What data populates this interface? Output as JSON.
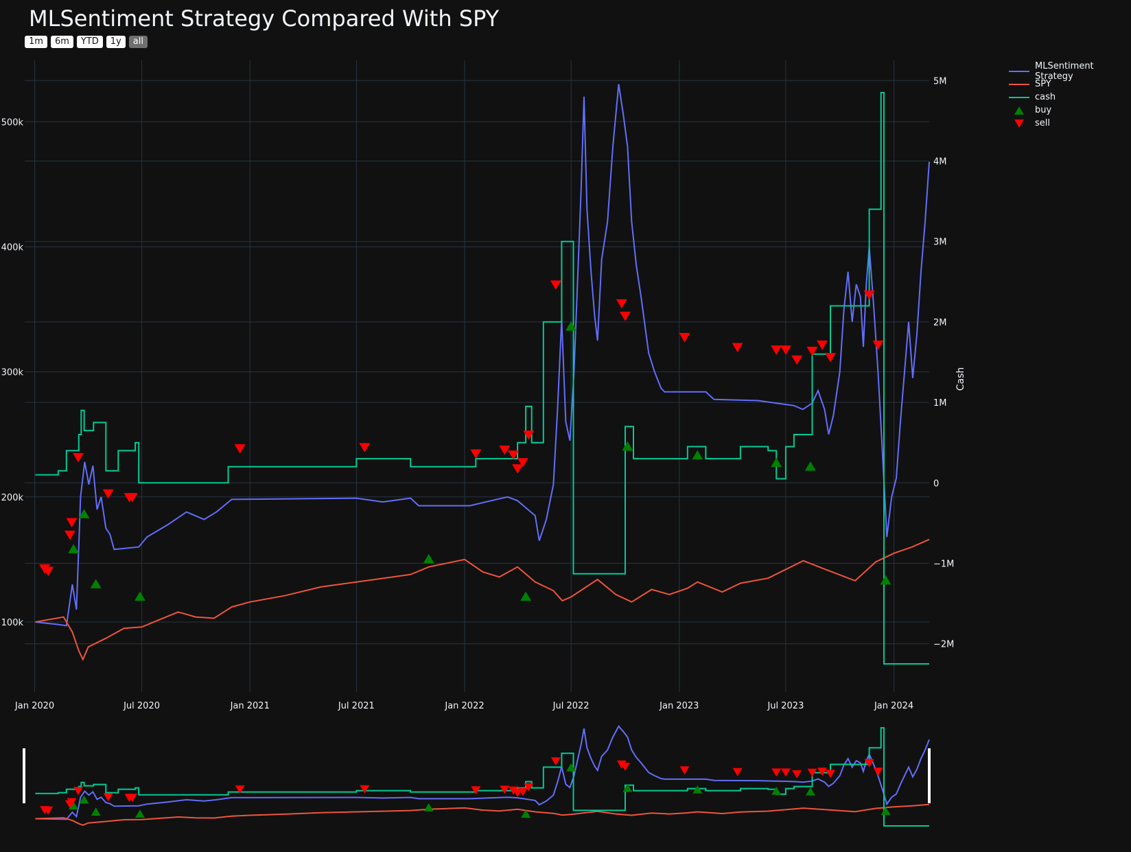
{
  "title": "MLSentiment Strategy Compared With SPY",
  "range_selector": {
    "buttons": [
      "1m",
      "6m",
      "YTD",
      "1y",
      "all"
    ],
    "active": "all"
  },
  "legend": {
    "placement": "top-right",
    "items": [
      {
        "label": "MLSentiment Strategy",
        "kind": "line",
        "color": "#636efa"
      },
      {
        "label": "SPY",
        "kind": "line",
        "color": "#ef553b"
      },
      {
        "label": "cash",
        "kind": "line",
        "color": "#00cc96"
      },
      {
        "label": "buy",
        "kind": "triangle-up",
        "color": "#008000"
      },
      {
        "label": "sell",
        "kind": "triangle-down",
        "color": "#ff0000"
      }
    ]
  },
  "colors": {
    "background": "#111111",
    "grid": "#283442",
    "strategy": "#636efa",
    "spy": "#ef553b",
    "cash": "#00cc96",
    "buy": "#008000",
    "sell": "#ff0000"
  },
  "chart_data": {
    "type": "line",
    "title": "MLSentiment Strategy Compared With SPY",
    "grid": true,
    "x_ticks": [
      "Jan 2020",
      "Jul 2020",
      "Jan 2021",
      "Jul 2021",
      "Jan 2022",
      "Jul 2022",
      "Jan 2023",
      "Jul 2023",
      "Jan 2024"
    ],
    "x_tick_values": [
      "2020-01-01",
      "2020-07-01",
      "2021-01-01",
      "2021-07-01",
      "2022-01-01",
      "2022-07-01",
      "2023-01-01",
      "2023-07-01",
      "2024-01-01"
    ],
    "xlim": [
      "2019-12-15",
      "2024-03-01"
    ],
    "y_left": {
      "ticks": [
        "100k",
        "200k",
        "300k",
        "400k",
        "500k"
      ],
      "tick_values": [
        100000,
        200000,
        300000,
        400000,
        500000
      ],
      "range": [
        44000,
        549000
      ]
    },
    "y_right": {
      "label": "Cash",
      "ticks": [
        "−2M",
        "−1M",
        "0",
        "1M",
        "2M",
        "3M",
        "4M",
        "5M"
      ],
      "tick_values": [
        -2000000,
        -1000000,
        0,
        1000000,
        2000000,
        3000000,
        4000000,
        5000000
      ],
      "range": [
        -2600000,
        5250000
      ]
    },
    "series": [
      {
        "name": "MLSentiment Strategy",
        "axis": "left",
        "color": "#636efa",
        "points": [
          [
            "2020-01-02",
            100000
          ],
          [
            "2020-02-10",
            98000
          ],
          [
            "2020-02-24",
            97000
          ],
          [
            "2020-03-05",
            130000
          ],
          [
            "2020-03-12",
            110000
          ],
          [
            "2020-03-19",
            200000
          ],
          [
            "2020-03-26",
            228000
          ],
          [
            "2020-04-02",
            210000
          ],
          [
            "2020-04-09",
            225000
          ],
          [
            "2020-04-16",
            190000
          ],
          [
            "2020-04-23",
            200000
          ],
          [
            "2020-05-01",
            175000
          ],
          [
            "2020-05-08",
            170000
          ],
          [
            "2020-05-15",
            158000
          ],
          [
            "2020-06-26",
            160000
          ],
          [
            "2020-07-10",
            168000
          ],
          [
            "2020-08-15",
            178000
          ],
          [
            "2020-09-15",
            188000
          ],
          [
            "2020-10-15",
            182000
          ],
          [
            "2020-11-05",
            188000
          ],
          [
            "2020-12-01",
            198000
          ],
          [
            "2021-07-01",
            199000
          ],
          [
            "2021-08-15",
            196000
          ],
          [
            "2021-10-01",
            199000
          ],
          [
            "2021-10-15",
            193000
          ],
          [
            "2022-01-10",
            193000
          ],
          [
            "2022-02-15",
            197000
          ],
          [
            "2022-03-15",
            200000
          ],
          [
            "2022-04-01",
            197000
          ],
          [
            "2022-05-01",
            185000
          ],
          [
            "2022-05-08",
            165000
          ],
          [
            "2022-05-20",
            182000
          ],
          [
            "2022-06-01",
            210000
          ],
          [
            "2022-06-08",
            270000
          ],
          [
            "2022-06-15",
            342000
          ],
          [
            "2022-06-22",
            260000
          ],
          [
            "2022-06-29",
            245000
          ],
          [
            "2022-07-06",
            300000
          ],
          [
            "2022-07-11",
            360000
          ],
          [
            "2022-07-18",
            445000
          ],
          [
            "2022-07-23",
            520000
          ],
          [
            "2022-07-28",
            430000
          ],
          [
            "2022-08-04",
            380000
          ],
          [
            "2022-08-10",
            345000
          ],
          [
            "2022-08-15",
            325000
          ],
          [
            "2022-08-22",
            390000
          ],
          [
            "2022-09-01",
            420000
          ],
          [
            "2022-09-10",
            480000
          ],
          [
            "2022-09-20",
            530000
          ],
          [
            "2022-09-28",
            505000
          ],
          [
            "2022-10-05",
            480000
          ],
          [
            "2022-10-12",
            420000
          ],
          [
            "2022-10-20",
            385000
          ],
          [
            "2022-10-28",
            360000
          ],
          [
            "2022-11-10",
            315000
          ],
          [
            "2022-11-20",
            300000
          ],
          [
            "2022-12-01",
            287000
          ],
          [
            "2022-12-07",
            284000
          ],
          [
            "2023-02-15",
            284000
          ],
          [
            "2023-03-01",
            278000
          ],
          [
            "2023-05-15",
            277000
          ],
          [
            "2023-06-15",
            275000
          ],
          [
            "2023-07-15",
            273000
          ],
          [
            "2023-07-30",
            270000
          ],
          [
            "2023-08-15",
            275000
          ],
          [
            "2023-08-25",
            285000
          ],
          [
            "2023-09-05",
            270000
          ],
          [
            "2023-09-12",
            250000
          ],
          [
            "2023-09-20",
            265000
          ],
          [
            "2023-10-01",
            300000
          ],
          [
            "2023-10-08",
            350000
          ],
          [
            "2023-10-15",
            380000
          ],
          [
            "2023-10-22",
            340000
          ],
          [
            "2023-10-29",
            370000
          ],
          [
            "2023-11-05",
            360000
          ],
          [
            "2023-11-10",
            320000
          ],
          [
            "2023-11-15",
            370000
          ],
          [
            "2023-11-20",
            400000
          ],
          [
            "2023-11-28",
            350000
          ],
          [
            "2023-12-05",
            300000
          ],
          [
            "2023-12-12",
            240000
          ],
          [
            "2023-12-20",
            168000
          ],
          [
            "2023-12-28",
            200000
          ],
          [
            "2024-01-05",
            215000
          ],
          [
            "2024-01-12",
            260000
          ],
          [
            "2024-01-19",
            300000
          ],
          [
            "2024-01-26",
            340000
          ],
          [
            "2024-02-02",
            295000
          ],
          [
            "2024-02-09",
            330000
          ],
          [
            "2024-02-16",
            380000
          ],
          [
            "2024-02-23",
            420000
          ],
          [
            "2024-03-01",
            468000
          ]
        ]
      },
      {
        "name": "SPY",
        "axis": "left",
        "color": "#ef553b",
        "points": [
          [
            "2020-01-02",
            100000
          ],
          [
            "2020-02-19",
            104000
          ],
          [
            "2020-03-05",
            92000
          ],
          [
            "2020-03-16",
            77000
          ],
          [
            "2020-03-23",
            70000
          ],
          [
            "2020-04-01",
            80000
          ],
          [
            "2020-05-01",
            87000
          ],
          [
            "2020-06-01",
            95000
          ],
          [
            "2020-07-01",
            96000
          ],
          [
            "2020-08-01",
            102000
          ],
          [
            "2020-09-01",
            108000
          ],
          [
            "2020-10-01",
            104000
          ],
          [
            "2020-11-01",
            103000
          ],
          [
            "2020-12-01",
            112000
          ],
          [
            "2021-01-01",
            116000
          ],
          [
            "2021-03-01",
            121000
          ],
          [
            "2021-05-01",
            128000
          ],
          [
            "2021-07-01",
            132000
          ],
          [
            "2021-09-01",
            136000
          ],
          [
            "2021-10-01",
            138000
          ],
          [
            "2021-11-01",
            144000
          ],
          [
            "2022-01-01",
            150000
          ],
          [
            "2022-02-01",
            140000
          ],
          [
            "2022-03-01",
            136000
          ],
          [
            "2022-04-01",
            144000
          ],
          [
            "2022-05-01",
            132000
          ],
          [
            "2022-06-01",
            125000
          ],
          [
            "2022-06-16",
            117000
          ],
          [
            "2022-07-01",
            120000
          ],
          [
            "2022-08-15",
            134000
          ],
          [
            "2022-09-15",
            122000
          ],
          [
            "2022-10-12",
            116000
          ],
          [
            "2022-11-15",
            126000
          ],
          [
            "2022-12-15",
            122000
          ],
          [
            "2023-01-15",
            127000
          ],
          [
            "2023-02-01",
            132000
          ],
          [
            "2023-03-15",
            124000
          ],
          [
            "2023-04-15",
            131000
          ],
          [
            "2023-06-01",
            135000
          ],
          [
            "2023-07-31",
            149000
          ],
          [
            "2023-09-01",
            143000
          ],
          [
            "2023-10-27",
            133000
          ],
          [
            "2023-12-01",
            148000
          ],
          [
            "2024-01-01",
            155000
          ],
          [
            "2024-02-01",
            160000
          ],
          [
            "2024-03-01",
            166000
          ]
        ]
      },
      {
        "name": "cash",
        "axis": "right",
        "color": "#00cc96",
        "shape": "hv",
        "points": [
          [
            "2020-01-02",
            100000
          ],
          [
            "2020-02-10",
            150000
          ],
          [
            "2020-02-24",
            400000
          ],
          [
            "2020-03-16",
            600000
          ],
          [
            "2020-03-20",
            900000
          ],
          [
            "2020-03-25",
            650000
          ],
          [
            "2020-04-10",
            750000
          ],
          [
            "2020-05-01",
            150000
          ],
          [
            "2020-05-20",
            150000
          ],
          [
            "2020-05-22",
            400000
          ],
          [
            "2020-06-20",
            500000
          ],
          [
            "2020-06-26",
            0
          ],
          [
            "2020-11-25",
            200000
          ],
          [
            "2021-07-01",
            300000
          ],
          [
            "2021-10-01",
            200000
          ],
          [
            "2022-01-20",
            300000
          ],
          [
            "2022-04-01",
            500000
          ],
          [
            "2022-04-15",
            950000
          ],
          [
            "2022-04-25",
            500000
          ],
          [
            "2022-05-15",
            2000000
          ],
          [
            "2022-06-15",
            3000000
          ],
          [
            "2022-07-01",
            3000000
          ],
          [
            "2022-07-05",
            -1130000
          ],
          [
            "2022-09-30",
            -1130000
          ],
          [
            "2022-10-01",
            700000
          ],
          [
            "2022-10-15",
            300000
          ],
          [
            "2023-01-15",
            450000
          ],
          [
            "2023-02-15",
            300000
          ],
          [
            "2023-04-15",
            450000
          ],
          [
            "2023-06-01",
            400000
          ],
          [
            "2023-06-15",
            50000
          ],
          [
            "2023-07-01",
            450000
          ],
          [
            "2023-07-15",
            600000
          ],
          [
            "2023-08-15",
            1600000
          ],
          [
            "2023-09-15",
            2200000
          ],
          [
            "2023-10-15",
            2200000
          ],
          [
            "2023-11-01",
            2200000
          ],
          [
            "2023-11-10",
            2200000
          ],
          [
            "2023-11-20",
            3400000
          ],
          [
            "2023-12-10",
            4850000
          ],
          [
            "2023-12-15",
            -2250000
          ],
          [
            "2024-03-01",
            -2250000
          ]
        ]
      }
    ],
    "markers": {
      "buy": [
        [
          "2020-03-07",
          158000
        ],
        [
          "2020-03-25",
          186000
        ],
        [
          "2020-04-14",
          130000
        ],
        [
          "2020-06-28",
          120000
        ],
        [
          "2021-11-01",
          150000
        ],
        [
          "2022-04-15",
          120000
        ],
        [
          "2022-07-01",
          336000
        ],
        [
          "2022-10-05",
          240000
        ],
        [
          "2023-02-01",
          233000
        ],
        [
          "2023-06-15",
          227000
        ],
        [
          "2023-08-12",
          224000
        ],
        [
          "2023-12-18",
          133000
        ]
      ],
      "sell": [
        [
          "2020-01-18",
          143000
        ],
        [
          "2020-01-24",
          141000
        ],
        [
          "2020-03-01",
          170000
        ],
        [
          "2020-03-04",
          180000
        ],
        [
          "2020-03-15",
          232000
        ],
        [
          "2020-05-05",
          203000
        ],
        [
          "2020-06-10",
          200000
        ],
        [
          "2020-06-15",
          200000
        ],
        [
          "2020-12-15",
          239000
        ],
        [
          "2021-07-15",
          240000
        ],
        [
          "2022-01-20",
          235000
        ],
        [
          "2022-03-10",
          238000
        ],
        [
          "2022-03-25",
          234000
        ],
        [
          "2022-04-01",
          223000
        ],
        [
          "2022-04-10",
          228000
        ],
        [
          "2022-04-20",
          250000
        ],
        [
          "2022-06-05",
          370000
        ],
        [
          "2022-09-25",
          355000
        ],
        [
          "2022-10-01",
          345000
        ],
        [
          "2023-01-10",
          328000
        ],
        [
          "2023-04-10",
          320000
        ],
        [
          "2023-06-15",
          318000
        ],
        [
          "2023-07-01",
          318000
        ],
        [
          "2023-07-20",
          310000
        ],
        [
          "2023-08-15",
          317000
        ],
        [
          "2023-09-01",
          322000
        ],
        [
          "2023-09-15",
          312000
        ],
        [
          "2023-11-20",
          362000
        ],
        [
          "2023-12-05",
          322000
        ]
      ]
    }
  }
}
